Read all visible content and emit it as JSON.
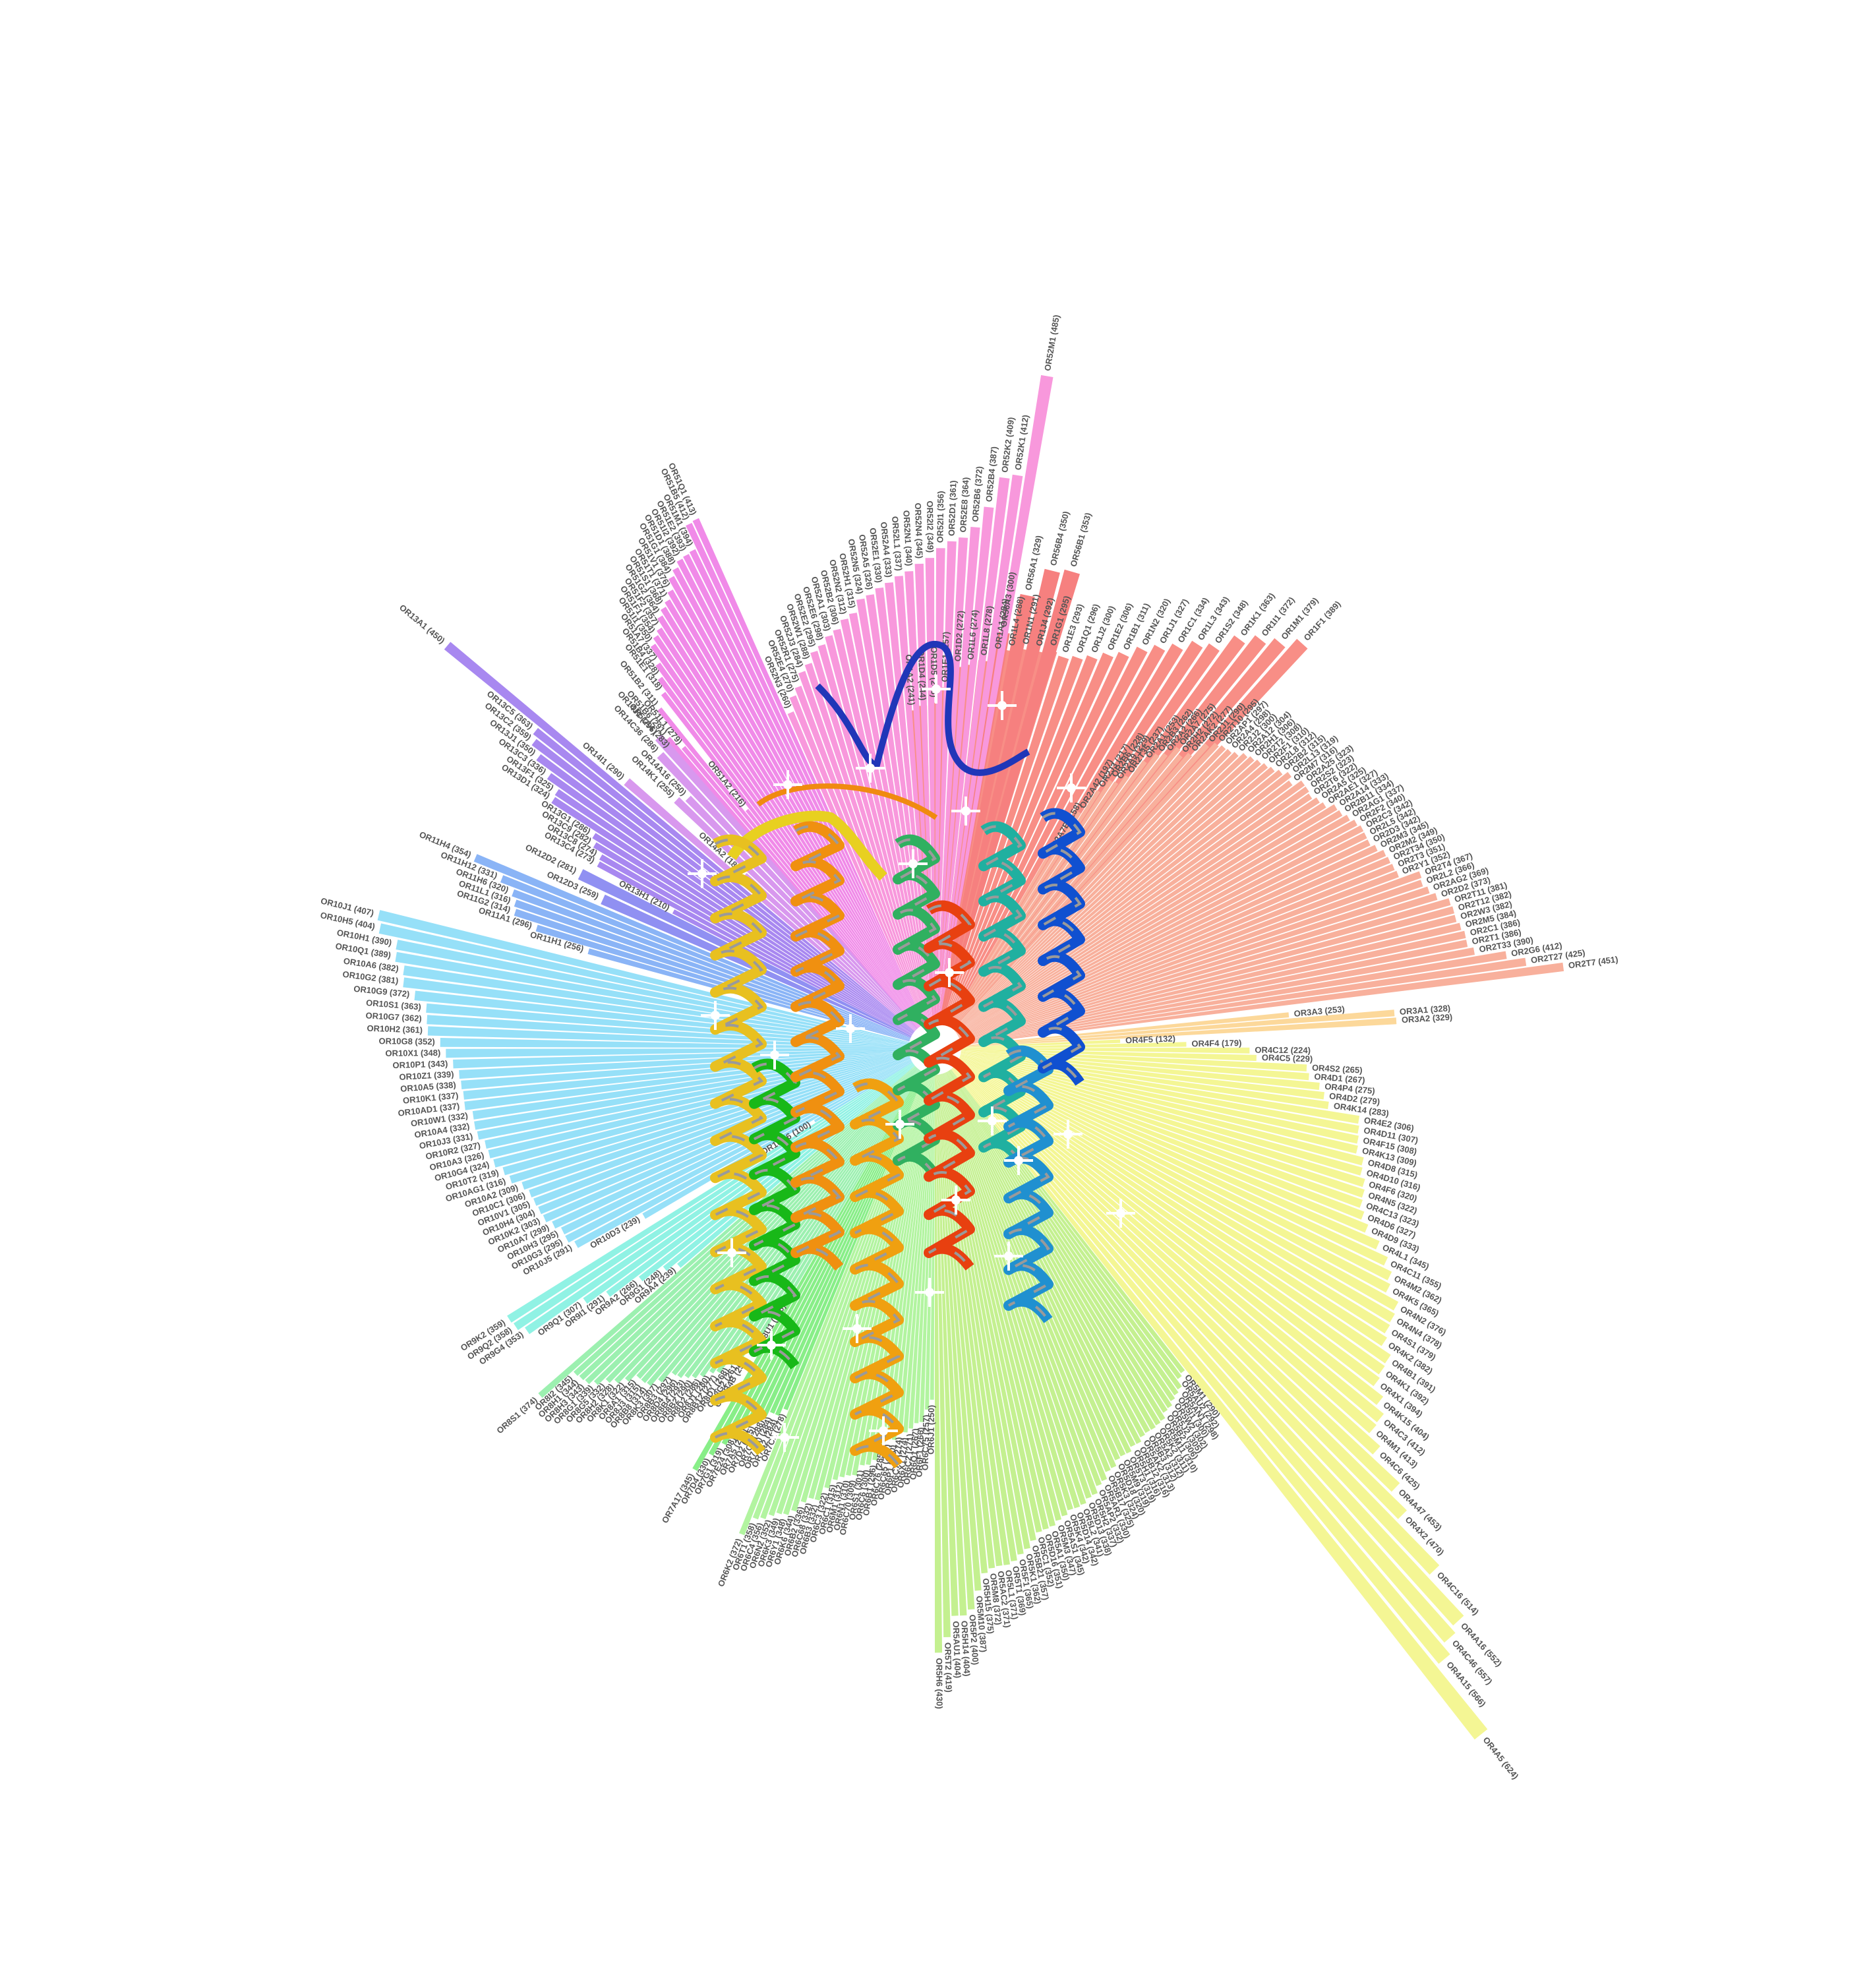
{
  "chart_data": {
    "type": "bar",
    "layout": "radial",
    "title": "",
    "xlabel": "",
    "ylabel": "",
    "value_range": [
      0,
      624
    ],
    "grid": false,
    "legend": "none",
    "center_image": "ribbon-protein-structure",
    "families": [
      {
        "family": "OR1",
        "color": "#f88e86",
        "angle_start": -43,
        "angle_end": 5,
        "labels": [
          "OR1F1 (389)",
          "OR1M1 (379)",
          "OR1I1 (372)",
          "OR1K1 (363)",
          "OR1S2 (348)",
          "OR1L3 (343)",
          "OR1C1 (334)",
          "OR1J1 (327)",
          "OR1N2 (320)",
          "OR1B1 (311)",
          "OR1E2 (306)",
          "OR1J2 (300)",
          "OR1Q1 (296)",
          "OR1E3 (293)",
          "OR1G1 (295)",
          "OR1J4 (292)",
          "OR1N1 (291)",
          "OR1L4 (288)",
          "OR1A1 (284)",
          "OR1L8 (278)",
          "OR1L6 (274)",
          "OR1D2 (272)",
          "OR1E1 (257)",
          "OR1D5 (246)",
          "OR1D4 (244)",
          "OR1A2 (241)"
        ],
        "values": [
          389,
          379,
          372,
          363,
          348,
          343,
          334,
          327,
          320,
          311,
          306,
          300,
          296,
          293,
          295,
          292,
          291,
          288,
          284,
          278,
          274,
          272,
          257,
          246,
          244,
          241
        ]
      },
      {
        "family": "OR56",
        "color": "#f6807f",
        "angle_start": -17,
        "angle_end": -8,
        "labels": [
          "OR56B1 (353)",
          "OR56B4 (350)",
          "OR56A1 (329)",
          "OR56A3 (300)"
        ],
        "values": [
          353,
          350,
          329,
          300
        ]
      },
      {
        "family": "OR52",
        "color": "#f898dc",
        "angle_start": -10,
        "angle_end": 24,
        "labels": [
          "OR52M1 (485)",
          "OR52K1 (412)",
          "OR52K2 (409)",
          "OR52B4 (387)",
          "OR52B6 (372)",
          "OR52E8 (364)",
          "OR52D1 (361)",
          "OR52I1 (356)",
          "OR52I2 (349)",
          "OR52N4 (345)",
          "OR52N1 (340)",
          "OR52L1 (337)",
          "OR52A4 (333)",
          "OR52E1 (330)",
          "OR52A5 (326)",
          "OR52N5 (324)",
          "OR52H1 (315)",
          "OR52N2 (312)",
          "OR52B2 (306)",
          "OR52A1 (303)",
          "OR52E6 (298)",
          "OR52E2 (295)",
          "OR52W1 (288)",
          "OR52J3 (284)",
          "OR52R1 (275)",
          "OR52E4 (270)",
          "OR52N3 (260)"
        ],
        "values": [
          485,
          412,
          409,
          387,
          372,
          364,
          361,
          356,
          349,
          345,
          340,
          337,
          333,
          330,
          326,
          324,
          315,
          312,
          306,
          303,
          298,
          295,
          288,
          284,
          275,
          270,
          260
        ]
      },
      {
        "family": "OR51",
        "color": "#f08ae8",
        "angle_start": 24,
        "angle_end": 42,
        "labels": [
          "OR51Q1 (413)",
          "OR51B5 (412)",
          "OR51M1 (394)",
          "OR51E2 (393)",
          "OR51I2 (392)",
          "OR51D1 (388)",
          "OR51G1 (384)",
          "OR51V1 (376)",
          "OR51T1 (371)",
          "OR51S1 (368)",
          "OR51G2 (364)",
          "OR51F2 (357)",
          "OR51F1 (354)",
          "OR51I1 (350)",
          "OR51A7 (337)",
          "OR51B4 (328)",
          "OR51E1 (318)",
          "OR51A2 (216)",
          "OR51B2 (311)",
          "OR51L1 (279)",
          "OR51B6 (291)",
          "OR51A4 (283)"
        ],
        "values": [
          413,
          412,
          394,
          393,
          392,
          388,
          384,
          376,
          371,
          368,
          364,
          357,
          354,
          350,
          337,
          328,
          318,
          216,
          311,
          279,
          291,
          283
        ]
      },
      {
        "family": "OR14",
        "color": "#d898ee",
        "angle_start": 41,
        "angle_end": 50,
        "labels": [
          "OR14J1 (296)",
          "OR14C36 (286)",
          "OR14A16 (250)",
          "OR14K1 (255)",
          "OR14A2 (183)",
          "OR14I1 (290)"
        ],
        "values": [
          296,
          286,
          250,
          255,
          183,
          290
        ]
      },
      {
        "family": "OR13",
        "color": "#a888f0",
        "angle_start": 50,
        "angle_end": 63,
        "labels": [
          "OR13A1 (450)",
          "OR13C5 (363)",
          "OR13C2 (359)",
          "OR13J1 (350)",
          "OR13C3 (336)",
          "OR13F1 (325)",
          "OR13D1 (324)",
          "OR13G1 (286)",
          "OR13C9 (282)",
          "OR13C8 (274)",
          "OR13C4 (273)",
          "OR13H1 (210)"
        ],
        "values": [
          450,
          363,
          359,
          350,
          336,
          325,
          324,
          286,
          282,
          274,
          273,
          210
        ]
      },
      {
        "family": "OR12",
        "color": "#9090f2",
        "angle_start": 63,
        "angle_end": 67,
        "labels": [
          "OR12D2 (281)",
          "OR12D3 (259)"
        ],
        "values": [
          281,
          259
        ]
      },
      {
        "family": "OR11",
        "color": "#8ab4f6",
        "angle_start": 67,
        "angle_end": 75,
        "labels": [
          "OR11H4 (354)",
          "OR11H12 (331)",
          "OR11H6 (320)",
          "OR11L1 (316)",
          "OR11G2 (314)",
          "OR11A1 (296)",
          "OR11H1 (256)"
        ],
        "values": [
          354,
          331,
          320,
          316,
          314,
          296,
          256
        ]
      },
      {
        "family": "OR10",
        "color": "#96e0f8",
        "angle_start": 76,
        "angle_end": 122,
        "labels": [
          "OR10J1 (407)",
          "OR10H5 (404)",
          "OR10H1 (390)",
          "OR10Q1 (389)",
          "OR10A6 (382)",
          "OR10G2 (381)",
          "OR10G9 (372)",
          "OR10S1 (363)",
          "OR10G7 (362)",
          "OR10H2 (361)",
          "OR10G8 (352)",
          "OR10X1 (348)",
          "OR10P1 (343)",
          "OR10Z1 (339)",
          "OR10A5 (338)",
          "OR10K1 (337)",
          "OR10AD1 (337)",
          "OR10W1 (332)",
          "OR10A4 (332)",
          "OR10J3 (331)",
          "OR10R2 (327)",
          "OR10A3 (326)",
          "OR10G4 (324)",
          "OR10T2 (319)",
          "OR10AG1 (316)",
          "OR10A2 (309)",
          "OR10C1 (306)",
          "OR10V1 (305)",
          "OR10H4 (304)",
          "OR10K2 (303)",
          "OR10A7 (299)",
          "OR10H3 (295)",
          "OR10G3 (295)",
          "OR10J5 (291)",
          "OR10D3 (239)",
          "OR10G6 (100)"
        ],
        "values": [
          407,
          404,
          390,
          389,
          382,
          381,
          372,
          363,
          362,
          361,
          352,
          348,
          343,
          339,
          338,
          337,
          337,
          332,
          332,
          331,
          327,
          326,
          324,
          319,
          316,
          309,
          306,
          305,
          304,
          303,
          299,
          295,
          295,
          291,
          239,
          100
        ]
      },
      {
        "family": "OR9",
        "color": "#90f2e4",
        "angle_start": 122,
        "angle_end": 131,
        "labels": [
          "OR9K2 (359)",
          "OR9Q2 (358)",
          "OR9G4 (353)",
          "OR9Q1 (307)",
          "OR9I1 (291)",
          "OR9A2 (266)",
          "OR9G1 (248)",
          "OR9A4 (239)"
        ],
        "values": [
          359,
          358,
          353,
          307,
          291,
          266,
          248,
          239
        ]
      },
      {
        "family": "OR8",
        "color": "#9cf0b0",
        "angle_start": 131,
        "angle_end": 150,
        "labels": [
          "OR8S1 (374)",
          "OR8I2 (345)",
          "OR8H1 (344)",
          "OR8H3 (343)",
          "OR8G1 (339)",
          "OR8G5 (332)",
          "OR8H2 (328)",
          "OR8K1 (322)",
          "OR8A1 (315)",
          "OR8J3 (315)",
          "OR8B8 (314)",
          "OR8K3 (307)",
          "OR8B3 (297)",
          "OR8D4 (296)",
          "OR8B4 (293)",
          "OR8B2 (290)",
          "OR8D2 (286)",
          "OR8J1 (280)",
          "OR8B12 (277)",
          "OR8D1 (268)",
          "OR8G2 (261)",
          "OR8B4B (254)",
          "OR8U1 (208)"
        ],
        "values": [
          374,
          345,
          344,
          343,
          339,
          332,
          328,
          322,
          315,
          315,
          314,
          307,
          297,
          296,
          293,
          290,
          286,
          280,
          277,
          268,
          261,
          254,
          208
        ]
      },
      {
        "family": "OR7",
        "color": "#88ee88",
        "angle_start": 150,
        "angle_end": 158,
        "labels": [
          "OR7A17 (345)",
          "OR7D4 (330)",
          "OR7G1 (319)",
          "OR7E24 (308)",
          "OR7A5 (299)",
          "OR7D2 (295)",
          "OR7C2 (288)",
          "OR7A10 (284)",
          "OR7G2 (284)",
          "OR7C1 (278)"
        ],
        "values": [
          345,
          330,
          319,
          308,
          299,
          295,
          288,
          284,
          284,
          278
        ]
      },
      {
        "family": "OR6",
        "color": "#b2f4a0",
        "angle_start": 158,
        "angle_end": 180,
        "labels": [
          "OR6K2 (372)",
          "OR6T1 (358)",
          "OR6C4 (356)",
          "OR6N2 (352)",
          "OR6K3 (349)",
          "OR6Y1 (348)",
          "OR6K6 (344)",
          "OR6B2 (336)",
          "OR6C68 (332)",
          "OR6B3 (332)",
          "OR6C3 (322)",
          "OR6C1 (315)",
          "OR6M1 (312)",
          "OR6N1 (310)",
          "OR6C70 (309)",
          "OR6S1 (301)",
          "OR6C6 (300)",
          "OR6B1 (296)",
          "OR6C76 (285)",
          "OR6C65 (280)",
          "OR6P1 (280)",
          "OR6C74 (274)",
          "OR6X1 (274)",
          "OR6C2 (271)",
          "OR6Q1 (267)",
          "OR6F1 (266)",
          "OR6C75 (257)",
          "OR6J1 (250)"
        ],
        "values": [
          372,
          358,
          356,
          352,
          349,
          348,
          344,
          336,
          332,
          332,
          322,
          315,
          312,
          310,
          309,
          301,
          300,
          296,
          285,
          280,
          280,
          274,
          274,
          271,
          267,
          266,
          257,
          250
        ]
      },
      {
        "family": "OR5",
        "color": "#c4f090",
        "angle_start": 180,
        "angle_end": 218,
        "labels": [
          "OR5H6 (430)",
          "OR5T2 (419)",
          "OR5AU1 (404)",
          "OR5H14 (404)",
          "OR5P2 (400)",
          "OR5M10 (387)",
          "OR5H15 (375)",
          "OR5M8 (372)",
          "OR5AC2 (371)",
          "OR5L1 (371)",
          "OR5T1 (369)",
          "OR5F1 (365)",
          "OR5K1 (362)",
          "OR5B21 (357)",
          "OR5C1 (352)",
          "OR5D16 (351)",
          "OR5A1 (350)",
          "OR5M3 (347)",
          "OR5AS1 (345)",
          "OR5K4 (342)",
          "OR5D14 (342)",
          "OR5L2 (341)",
          "OR5D13 (338)",
          "OR5H2 (337)",
          "OR5AP2 (332)",
          "OR5AR1 (330)",
          "OR5B17 (325)",
          "OR5K3 (324)",
          "OR5D18 (320)",
          "OR5M9 (319)",
          "OR5T3 (319)",
          "OR5H1 (316)",
          "OR5B12 (316)",
          "OR5AK2 (313)",
          "OR5B3 (312)",
          "OR5A2 (312)",
          "OR5K2 (311)",
          "OR5M11 (310)",
          "OR5B2 (306)",
          "OR5J2 (305)",
          "OR5W2 (302)",
          "OR5I1 (300)",
          "OR5AN1 (298)",
          "OR5AU2 (292)",
          "OR5M1 (290)"
        ],
        "values": [
          430,
          419,
          404,
          404,
          400,
          387,
          375,
          372,
          371,
          371,
          369,
          365,
          362,
          357,
          352,
          351,
          350,
          347,
          345,
          342,
          342,
          341,
          338,
          337,
          332,
          330,
          325,
          324,
          320,
          319,
          319,
          316,
          316,
          313,
          312,
          312,
          311,
          310,
          306,
          305,
          302,
          300,
          298,
          292,
          290
        ]
      },
      {
        "family": "OR4",
        "color": "#f4f694",
        "angle_start": 218,
        "angle_end": 273,
        "labels": [
          "OR4A5 (624)",
          "OR4A15 (566)",
          "OR4C46 (557)",
          "OR4A16 (552)",
          "OR4C16 (514)",
          "OR4X2 (470)",
          "OR4A47 (453)",
          "OR4C6 (425)",
          "OR4M1 (413)",
          "OR4C3 (412)",
          "OR4K15 (404)",
          "OR4X1 (394)",
          "OR4K1 (392)",
          "OR4B1 (391)",
          "OR4K2 (382)",
          "OR4S1 (379)",
          "OR4N4 (378)",
          "OR4N2 (376)",
          "OR4K5 (365)",
          "OR4M2 (362)",
          "OR4C11 (355)",
          "OR4L1 (345)",
          "OR4D9 (333)",
          "OR4D6 (327)",
          "OR4C13 (323)",
          "OR4N5 (322)",
          "OR4F6 (320)",
          "OR4D10 (316)",
          "OR4D8 (315)",
          "OR4K13 (309)",
          "OR4F15 (308)",
          "OR4D11 (307)",
          "OR4E2 (306)",
          "OR4K14 (283)",
          "OR4D2 (279)",
          "OR4P4 (275)",
          "OR4D1 (267)",
          "OR4S2 (265)",
          "OR4C5 (229)",
          "OR4C12 (224)",
          "OR4F4 (179)",
          "OR4F5 (132)"
        ],
        "values": [
          624,
          566,
          557,
          552,
          514,
          470,
          453,
          425,
          413,
          412,
          404,
          394,
          392,
          391,
          382,
          379,
          378,
          376,
          365,
          362,
          355,
          345,
          333,
          327,
          323,
          322,
          320,
          316,
          315,
          309,
          308,
          307,
          306,
          283,
          279,
          275,
          267,
          265,
          229,
          224,
          179,
          132
        ]
      },
      {
        "family": "OR3",
        "color": "#fcd89a",
        "angle_start": 273,
        "angle_end": 276,
        "labels": [
          "OR3A2 (329)",
          "OR3A1 (328)",
          "OR3A3 (253)"
        ],
        "values": [
          329,
          328,
          253
        ]
      },
      {
        "family": "OR2",
        "color": "#f8b09c",
        "angle_start": 277,
        "angle_end": 330,
        "labels": [
          "OR2T7 (451)",
          "OR2T27 (425)",
          "OR2G6 (412)",
          "OR2T33 (390)",
          "OR2T1 (386)",
          "OR2C1 (386)",
          "OR2M5 (384)",
          "OR2W3 (382)",
          "OR2T12 (382)",
          "OR2T11 (381)",
          "OR2D2 (373)",
          "OR2AG2 (369)",
          "OR2L2 (366)",
          "OR2T4 (367)",
          "OR2Y1 (352)",
          "OR2T3 (351)",
          "OR2T34 (350)",
          "OR2M2 (349)",
          "OR2M3 (345)",
          "OR2D3 (342)",
          "OR2L5 (342)",
          "OR2C3 (342)",
          "OR2F2 (340)",
          "OR2AG1 (337)",
          "OR2B11 (334)",
          "OR2A14 (333)",
          "OR2AE1 (327)",
          "OR2A5 (325)",
          "OR2T6 (322)",
          "OR2S2 (323)",
          "OR2A25 (323)",
          "OR2M7 (316)",
          "OR2L13 (319)",
          "OR2B2 (315)",
          "OR2L8 (312)",
          "OR2F1 (310)",
          "OR2T2 (308)",
          "OR2H1 (306)",
          "OR2A12 (304)",
          "OR2J2 (300)",
          "OR2A4 (298)",
          "OR2AP1 (297)",
          "OR2T10 (295)",
          "OR2J1 (290)",
          "OR2AK2 (277)",
          "OR2H2 (272)",
          "OR2A7 (275)",
          "OR2A2 (266)",
          "OR2B3 (262)",
          "OR2A1 (253)",
          "OR2T35 (237)",
          "OR2A9 (229)",
          "OR2B6 (228)",
          "OR2J3 (217)",
          "OR2A42 (197)",
          "OR2A7B (158)"
        ],
        "values": [
          451,
          425,
          412,
          390,
          386,
          386,
          384,
          382,
          382,
          381,
          373,
          369,
          366,
          367,
          352,
          351,
          350,
          349,
          345,
          342,
          342,
          342,
          340,
          337,
          334,
          333,
          327,
          325,
          322,
          323,
          323,
          316,
          319,
          315,
          312,
          310,
          308,
          306,
          304,
          300,
          298,
          297,
          295,
          290,
          277,
          272,
          275,
          266,
          262,
          253,
          237,
          229,
          228,
          217,
          197,
          158
        ]
      }
    ]
  }
}
